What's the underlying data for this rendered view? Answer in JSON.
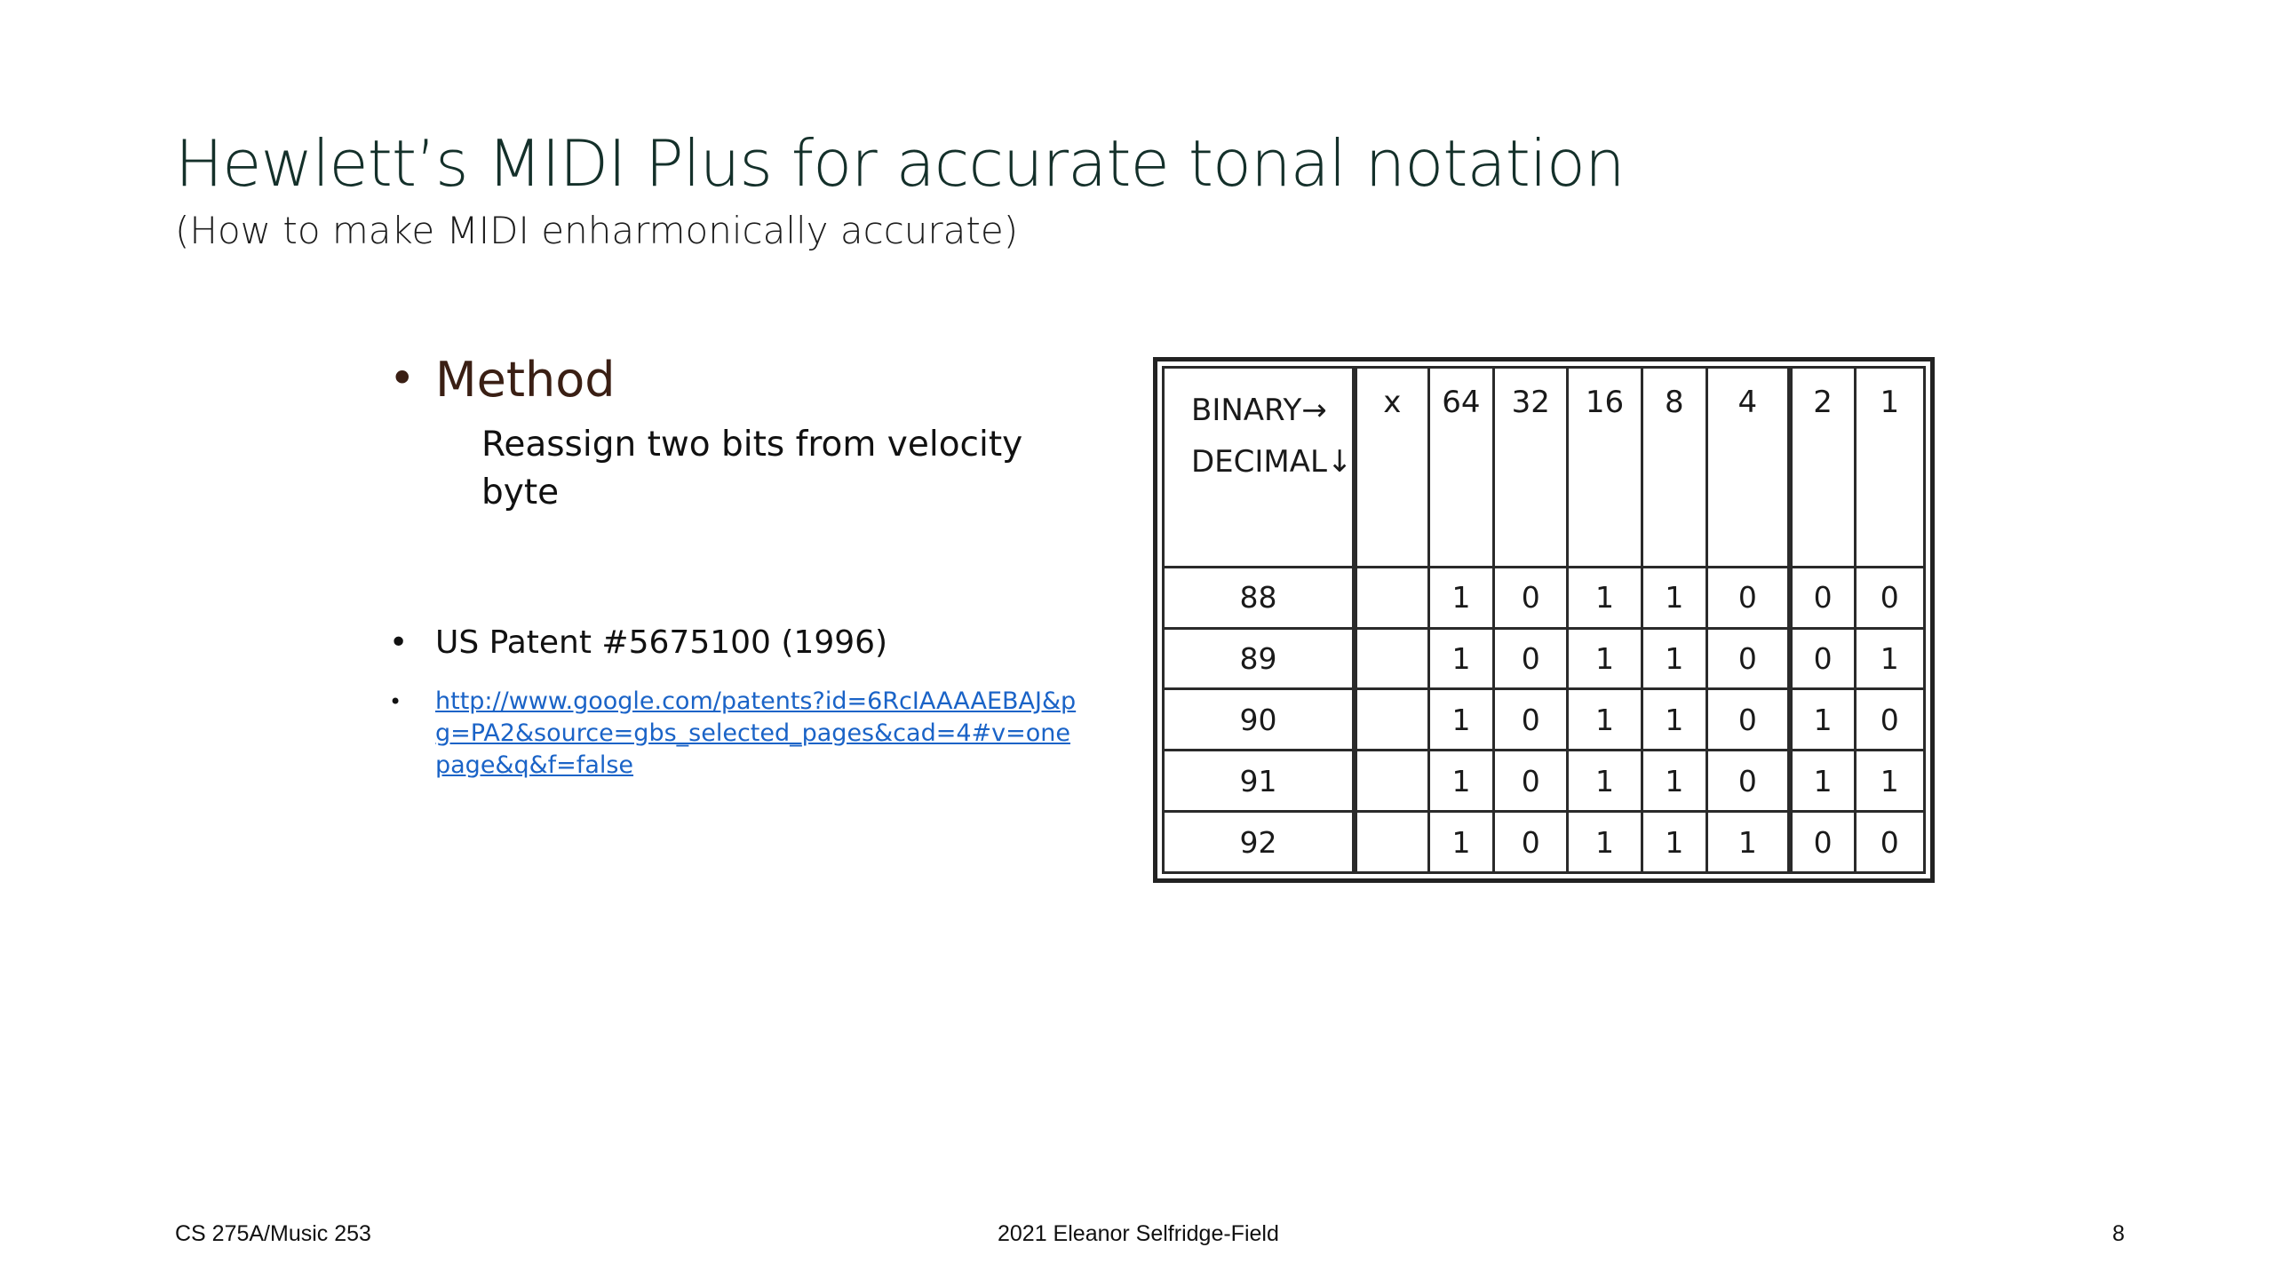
{
  "slide": {
    "title": "Hewlett’s MIDI Plus for accurate tonal notation",
    "subtitle": "(How to make MIDI enharmonically accurate)"
  },
  "bullets": {
    "method_label": "Method",
    "method_text": "Reassign two bits from velocity byte",
    "patent_text": "US Patent #5675100 (1996)",
    "link_text": "http://www.google.com/patents?id=6RcIAAAAEBAJ&pg=PA2&source=gbs_selected_pages&cad=4#v=onepage&q&f=false",
    "bullet_char": "•"
  },
  "table": {
    "corner_top": "BINARY→",
    "corner_bottom": "DECIMAL↓",
    "headers": [
      "x",
      "64",
      "32",
      "16",
      "8",
      "4",
      "2",
      "1"
    ],
    "rows": [
      {
        "decimal": "88",
        "bits": [
          "",
          "1",
          "0",
          "1",
          "1",
          "0",
          "0",
          "0"
        ]
      },
      {
        "decimal": "89",
        "bits": [
          "",
          "1",
          "0",
          "1",
          "1",
          "0",
          "0",
          "1"
        ]
      },
      {
        "decimal": "90",
        "bits": [
          "",
          "1",
          "0",
          "1",
          "1",
          "0",
          "1",
          "0"
        ]
      },
      {
        "decimal": "91",
        "bits": [
          "",
          "1",
          "0",
          "1",
          "1",
          "0",
          "1",
          "1"
        ]
      },
      {
        "decimal": "92",
        "bits": [
          "",
          "1",
          "0",
          "1",
          "1",
          "1",
          "0",
          "0"
        ]
      }
    ]
  },
  "footer": {
    "left": "CS 275A/Music 253",
    "center": "2021 Eleanor Selfridge-Field",
    "page_number": "8"
  }
}
